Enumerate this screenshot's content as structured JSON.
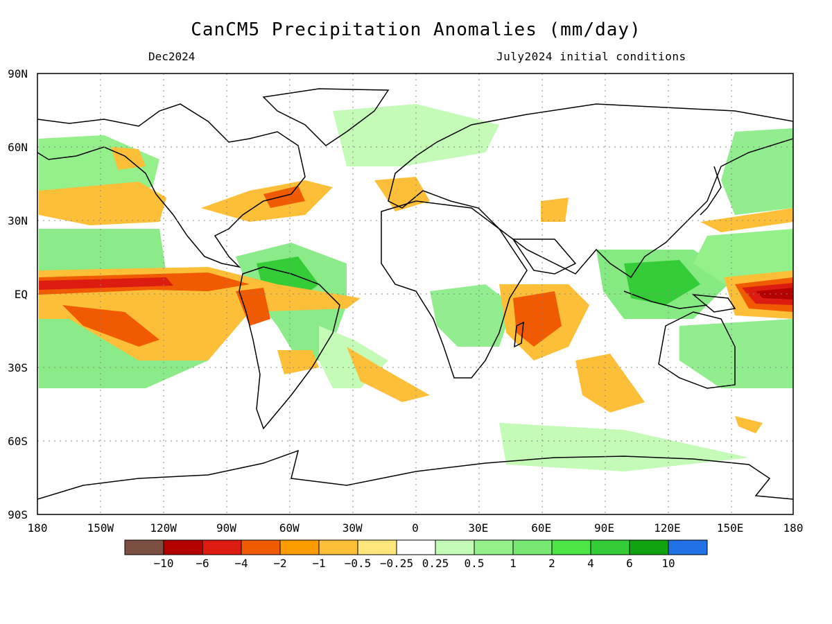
{
  "header": {
    "title": "CanCM5 Precipitation Anomalies (mm/day)",
    "valid_month": "Dec2024",
    "initial_conditions": "July2024 initial conditions"
  },
  "map": {
    "lat_labels": [
      "90N",
      "60N",
      "30N",
      "EQ",
      "30S",
      "60S",
      "90S"
    ],
    "lat_values": [
      90,
      60,
      30,
      0,
      -30,
      -60,
      -90
    ],
    "lon_labels": [
      "180",
      "150W",
      "120W",
      "90W",
      "60W",
      "30W",
      "0",
      "30E",
      "60E",
      "90E",
      "120E",
      "150E",
      "180"
    ],
    "lon_values": [
      -180,
      -150,
      -120,
      -90,
      -60,
      -30,
      0,
      30,
      60,
      90,
      120,
      150,
      180
    ],
    "lon_range": [
      -180,
      180
    ],
    "lat_range": [
      -90,
      90
    ],
    "grid": "dotted"
  },
  "legend": {
    "labels": [
      "−10",
      "−6",
      "−4",
      "−2",
      "−1",
      "−0.5",
      "−0.25",
      "0.25",
      "0.5",
      "1",
      "2",
      "4",
      "6",
      "10"
    ],
    "colors": [
      "#7a4e40",
      "#b50000",
      "#dc1c10",
      "#f05a00",
      "#fb9c00",
      "#fdbf37",
      "#fee57c",
      "#ffffff",
      "#c3fbb7",
      "#93f08b",
      "#77e873",
      "#4ce547",
      "#35cd37",
      "#10a30f",
      "#2072e5"
    ]
  },
  "colors": {
    "dry_strong": "#dc1c10",
    "dry_moderate": "#f05a00",
    "dry_weak": "#fdbf37",
    "wet_weak": "#c3fbb7",
    "wet_moderate": "#77e873"
  }
}
